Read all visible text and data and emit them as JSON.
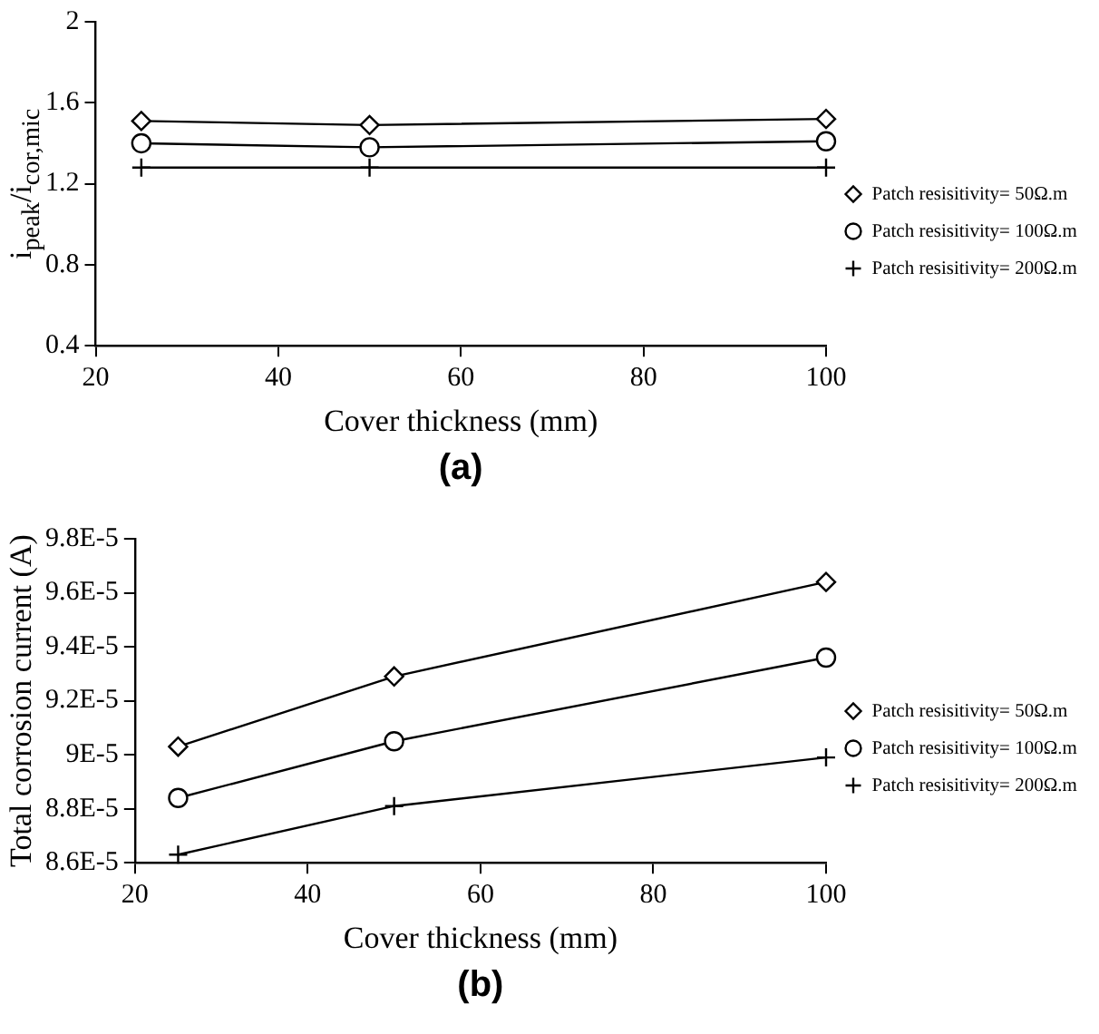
{
  "chart_data": [
    {
      "type": "line",
      "xlabel": "Cover thickness (mm)",
      "ylabel": "i$_{peak}$/i$_{cor,mic}$",
      "x": [
        25,
        50,
        100
      ],
      "xlim": [
        20,
        100
      ],
      "xticks": [
        20,
        40,
        60,
        80,
        100
      ],
      "ylim": [
        0.4,
        2
      ],
      "yticks": [
        0.4,
        0.8,
        1.2,
        1.6,
        2
      ],
      "legend": "right",
      "grid": false,
      "annotations": [
        "(a)"
      ],
      "series": [
        {
          "name": "Patch resisitivity= 50Ω.m",
          "color": "#000000",
          "marker": "diamond",
          "values": [
            1.51,
            1.49,
            1.52
          ]
        },
        {
          "name": "Patch resisitivity= 100Ω.m",
          "color": "#000000",
          "marker": "circle",
          "values": [
            1.4,
            1.38,
            1.41
          ]
        },
        {
          "name": "Patch resisitivity= 200Ω.m",
          "color": "#000000",
          "marker": "cross",
          "values": [
            1.28,
            1.28,
            1.28
          ]
        }
      ]
    },
    {
      "type": "line",
      "xlabel": "Cover thickness (mm)",
      "ylabel": "Total corrosion current (A)",
      "x": [
        25,
        50,
        100
      ],
      "xlim": [
        20,
        100
      ],
      "xticks": [
        20,
        40,
        60,
        80,
        100
      ],
      "ylim": [
        8.6e-05,
        9.8e-05
      ],
      "yticks": [
        {
          "value": 8.6e-05,
          "label": "8.6E-5"
        },
        {
          "value": 8.8e-05,
          "label": "8.8E-5"
        },
        {
          "value": 9e-05,
          "label": "9E-5"
        },
        {
          "value": 9.2e-05,
          "label": "9.2E-5"
        },
        {
          "value": 9.4e-05,
          "label": "9.4E-5"
        },
        {
          "value": 9.6e-05,
          "label": "9.6E-5"
        },
        {
          "value": 9.8e-05,
          "label": "9.8E-5"
        }
      ],
      "legend": "right",
      "grid": false,
      "annotations": [
        "(b)"
      ],
      "series": [
        {
          "name": "Patch resisitivity= 50Ω.m",
          "color": "#000000",
          "marker": "diamond",
          "values": [
            9.03e-05,
            9.29e-05,
            9.64e-05
          ]
        },
        {
          "name": "Patch resisitivity= 100Ω.m",
          "color": "#000000",
          "marker": "circle",
          "values": [
            8.84e-05,
            9.05e-05,
            9.36e-05
          ]
        },
        {
          "name": "Patch resisitivity= 200Ω.m",
          "color": "#000000",
          "marker": "cross",
          "values": [
            8.63e-05,
            8.81e-05,
            8.99e-05
          ]
        }
      ]
    }
  ]
}
